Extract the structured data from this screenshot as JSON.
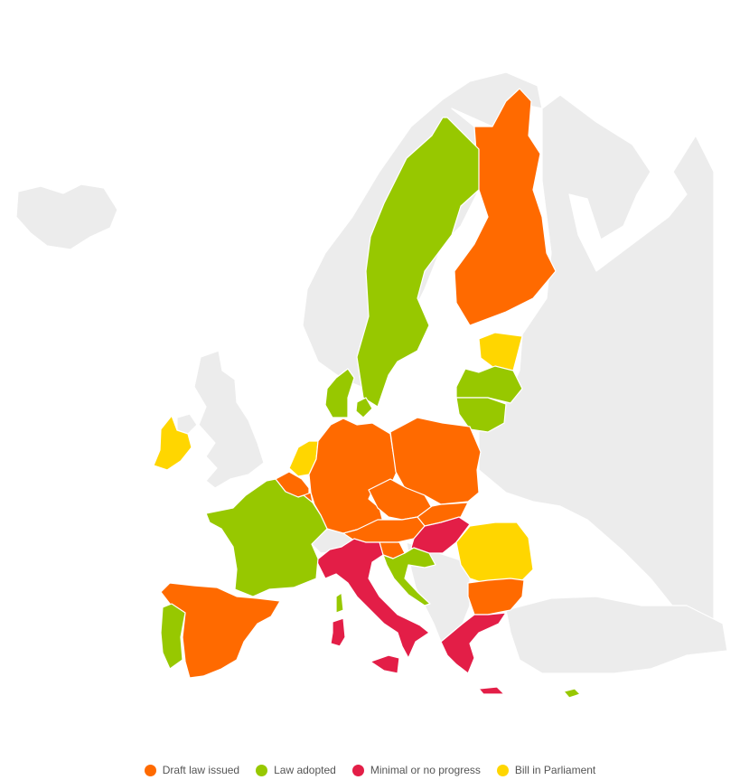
{
  "status_colors": {
    "draft": "#ff6a00",
    "adopted": "#97c800",
    "minimal": "#e31e47",
    "parliament": "#ffd600",
    "non_eu": "#ececec"
  },
  "legend": [
    {
      "key": "draft",
      "label": "Draft law issued",
      "color": "#ff6a00"
    },
    {
      "key": "adopted",
      "label": "Law adopted",
      "color": "#97c800"
    },
    {
      "key": "minimal",
      "label": "Minimal or no progress",
      "color": "#e31e47"
    },
    {
      "key": "parliament",
      "label": "Bill in Parliament",
      "color": "#ffd600"
    }
  ],
  "countries": [
    {
      "name": "Finland",
      "status": "draft"
    },
    {
      "name": "Sweden",
      "status": "adopted"
    },
    {
      "name": "Estonia",
      "status": "parliament"
    },
    {
      "name": "Latvia",
      "status": "adopted"
    },
    {
      "name": "Lithuania",
      "status": "adopted"
    },
    {
      "name": "Denmark",
      "status": "adopted"
    },
    {
      "name": "Ireland",
      "status": "parliament"
    },
    {
      "name": "Netherlands",
      "status": "parliament"
    },
    {
      "name": "Belgium",
      "status": "draft"
    },
    {
      "name": "Luxembourg",
      "status": "draft"
    },
    {
      "name": "Germany",
      "status": "draft"
    },
    {
      "name": "Poland",
      "status": "draft"
    },
    {
      "name": "Czechia",
      "status": "draft"
    },
    {
      "name": "Slovakia",
      "status": "draft"
    },
    {
      "name": "Austria",
      "status": "draft"
    },
    {
      "name": "Slovenia",
      "status": "draft"
    },
    {
      "name": "Hungary",
      "status": "minimal"
    },
    {
      "name": "Romania",
      "status": "parliament"
    },
    {
      "name": "Bulgaria",
      "status": "draft"
    },
    {
      "name": "Croatia",
      "status": "adopted"
    },
    {
      "name": "Italy",
      "status": "minimal"
    },
    {
      "name": "Greece",
      "status": "minimal"
    },
    {
      "name": "Cyprus",
      "status": "adopted"
    },
    {
      "name": "France",
      "status": "adopted"
    },
    {
      "name": "Spain",
      "status": "draft"
    },
    {
      "name": "Portugal",
      "status": "adopted"
    }
  ]
}
